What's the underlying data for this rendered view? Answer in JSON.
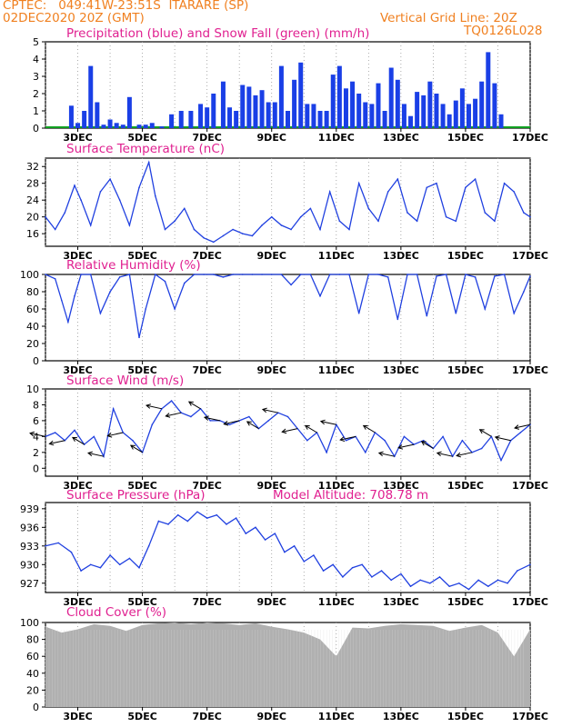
{
  "header": {
    "source": "CPTEC:",
    "location_coords": "049:41W-23:51S",
    "station": "ITARARE (SP)",
    "date": "02DEC2020 20Z (GMT)",
    "grid_note": "Vertical Grid Line: 20Z",
    "code": "TQ0126L028"
  },
  "colors": {
    "header": "#f08020",
    "titles": "#e02090",
    "precip": "#1a3fe6",
    "snow": "#10a020",
    "line": "#2040e0",
    "cloud": "#b0b0b0",
    "wind_arrow": "#000000"
  },
  "x_axis": {
    "labels": [
      "3DEC",
      "5DEC",
      "7DEC",
      "9DEC",
      "11DEC",
      "13DEC",
      "15DEC",
      "17DEC"
    ],
    "label_days": [
      1,
      3,
      5,
      7,
      9,
      11,
      13,
      15
    ],
    "range_days": [
      0,
      15
    ]
  },
  "chart_data": [
    {
      "type": "bar",
      "title": "Precipitation (blue) and Snow Fall (green) (mm/h)",
      "ylim": [
        0,
        5
      ],
      "yticks": [
        0,
        1,
        2,
        3,
        4,
        5
      ],
      "x": [
        0.8,
        1.0,
        1.2,
        1.4,
        1.6,
        1.8,
        2.0,
        2.2,
        2.4,
        2.6,
        2.9,
        3.1,
        3.3,
        3.6,
        3.9,
        4.2,
        4.5,
        4.8,
        5.0,
        5.2,
        5.5,
        5.7,
        5.9,
        6.1,
        6.3,
        6.5,
        6.7,
        6.9,
        7.1,
        7.3,
        7.5,
        7.7,
        7.9,
        8.1,
        8.3,
        8.5,
        8.7,
        8.9,
        9.1,
        9.3,
        9.5,
        9.7,
        9.9,
        10.1,
        10.3,
        10.5,
        10.7,
        10.9,
        11.1,
        11.3,
        11.5,
        11.7,
        11.9,
        12.1,
        12.3,
        12.5,
        12.7,
        12.9,
        13.1,
        13.3,
        13.5,
        13.7,
        13.9,
        14.1
      ],
      "values": [
        1.3,
        0.3,
        1.0,
        3.6,
        1.5,
        0.2,
        0.5,
        0.3,
        0.2,
        1.8,
        0.2,
        0.2,
        0.3,
        0.1,
        0.8,
        1.0,
        1.0,
        1.4,
        1.2,
        2.0,
        2.7,
        1.2,
        1.0,
        2.5,
        2.4,
        1.9,
        2.2,
        1.5,
        1.5,
        3.6,
        1.0,
        2.8,
        3.8,
        1.4,
        1.4,
        1.0,
        1.0,
        3.1,
        3.6,
        2.3,
        2.7,
        2.0,
        1.5,
        1.4,
        2.6,
        1.0,
        3.5,
        2.8,
        1.4,
        0.7,
        2.1,
        1.9,
        2.7,
        2.0,
        1.4,
        0.8,
        1.6,
        2.3,
        1.4,
        1.7,
        2.7,
        4.4,
        2.6,
        0.8
      ],
      "snow_values": "zero"
    },
    {
      "type": "line",
      "title": "Surface Temperature (nC)",
      "ylim": [
        13,
        34
      ],
      "yticks": [
        16,
        20,
        24,
        28,
        32
      ],
      "x": [
        0,
        0.3,
        0.6,
        0.9,
        1.1,
        1.4,
        1.7,
        2.0,
        2.3,
        2.6,
        2.9,
        3.2,
        3.4,
        3.7,
        4.0,
        4.3,
        4.6,
        4.9,
        5.2,
        5.5,
        5.8,
        6.1,
        6.4,
        6.7,
        7.0,
        7.3,
        7.6,
        7.9,
        8.2,
        8.5,
        8.8,
        9.1,
        9.4,
        9.7,
        10.0,
        10.3,
        10.6,
        10.9,
        11.2,
        11.5,
        11.8,
        12.1,
        12.4,
        12.7,
        13.0,
        13.3,
        13.6,
        13.9,
        14.2,
        14.5,
        14.8,
        15.0
      ],
      "values": [
        20,
        17,
        21,
        27.5,
        24,
        18,
        26,
        29,
        24,
        18,
        27,
        33,
        25,
        17,
        19,
        22,
        17,
        15,
        14,
        15.5,
        17,
        16,
        15.5,
        18,
        20,
        18,
        17,
        20,
        22,
        17,
        26,
        19,
        17,
        28,
        22,
        19,
        26,
        29,
        21,
        19,
        27,
        28,
        20,
        19,
        27,
        29,
        21,
        19,
        28,
        26,
        21,
        20
      ]
    },
    {
      "type": "line",
      "title": "Relative Humidity (%)",
      "ylim": [
        0,
        100
      ],
      "yticks": [
        0,
        20,
        40,
        60,
        80,
        100
      ],
      "x": [
        0,
        0.3,
        0.5,
        0.7,
        0.9,
        1.1,
        1.4,
        1.7,
        2.0,
        2.3,
        2.6,
        2.9,
        3.1,
        3.4,
        3.7,
        4.0,
        4.3,
        4.6,
        4.9,
        5.2,
        5.5,
        5.8,
        6.1,
        6.4,
        6.7,
        7.0,
        7.3,
        7.6,
        7.9,
        8.2,
        8.5,
        8.8,
        9.1,
        9.4,
        9.7,
        10.0,
        10.3,
        10.6,
        10.9,
        11.2,
        11.5,
        11.8,
        12.1,
        12.4,
        12.7,
        13.0,
        13.3,
        13.6,
        13.9,
        14.2,
        14.5,
        14.8,
        15.0
      ],
      "values": [
        100,
        95,
        70,
        45,
        75,
        100,
        100,
        55,
        80,
        97,
        100,
        27,
        60,
        100,
        92,
        60,
        90,
        100,
        100,
        100,
        97,
        100,
        100,
        100,
        100,
        100,
        100,
        88,
        100,
        100,
        75,
        100,
        100,
        100,
        55,
        100,
        100,
        97,
        48,
        100,
        100,
        52,
        98,
        100,
        55,
        100,
        97,
        60,
        98,
        100,
        55,
        80,
        98
      ]
    },
    {
      "type": "line",
      "title": "Surface Wind (m/s)",
      "ylim": [
        -1,
        10
      ],
      "yticks": [
        0,
        2,
        4,
        6,
        8,
        10
      ],
      "x": [
        0,
        0.3,
        0.6,
        0.9,
        1.2,
        1.5,
        1.8,
        2.1,
        2.4,
        2.7,
        3.0,
        3.3,
        3.6,
        3.9,
        4.2,
        4.5,
        4.8,
        5.1,
        5.4,
        5.7,
        6.0,
        6.3,
        6.6,
        6.9,
        7.2,
        7.5,
        7.8,
        8.1,
        8.4,
        8.7,
        9.0,
        9.3,
        9.6,
        9.9,
        10.2,
        10.5,
        10.8,
        11.1,
        11.4,
        11.7,
        12.0,
        12.3,
        12.6,
        12.9,
        13.2,
        13.5,
        13.8,
        14.1,
        14.4,
        14.7,
        15.0
      ],
      "values": [
        4.0,
        4.5,
        3.5,
        4.8,
        3.0,
        4.0,
        1.5,
        7.5,
        4.5,
        3.5,
        2.0,
        5.5,
        7.5,
        8.5,
        7.0,
        6.5,
        7.5,
        6.0,
        6.0,
        5.5,
        6.0,
        6.5,
        5.0,
        6.0,
        7.0,
        6.5,
        5.0,
        3.5,
        4.5,
        2.0,
        5.5,
        3.5,
        4.0,
        2.0,
        4.5,
        3.5,
        1.5,
        4.0,
        3.0,
        3.5,
        2.5,
        4.0,
        1.5,
        3.5,
        2.0,
        2.5,
        4.0,
        1.0,
        3.5,
        4.5,
        5.5
      ]
    },
    {
      "type": "line",
      "title": "Surface Pressure (hPa)",
      "annotation": "Model Altitude: 708.78 m",
      "ylim": [
        925.5,
        940
      ],
      "yticks": [
        927,
        930,
        933,
        936,
        939
      ],
      "x": [
        0,
        0.4,
        0.8,
        1.1,
        1.4,
        1.7,
        2.0,
        2.3,
        2.6,
        2.9,
        3.2,
        3.5,
        3.8,
        4.1,
        4.4,
        4.7,
        5.0,
        5.3,
        5.6,
        5.9,
        6.2,
        6.5,
        6.8,
        7.1,
        7.4,
        7.7,
        8.0,
        8.3,
        8.6,
        8.9,
        9.2,
        9.5,
        9.8,
        10.1,
        10.4,
        10.7,
        11.0,
        11.3,
        11.6,
        11.9,
        12.2,
        12.5,
        12.8,
        13.1,
        13.4,
        13.7,
        14.0,
        14.3,
        14.6,
        15.0
      ],
      "values": [
        933,
        933.5,
        932,
        929,
        930,
        929.5,
        931.5,
        930,
        931,
        929.5,
        933,
        937,
        936.5,
        938,
        937,
        938.5,
        937.5,
        938,
        936.5,
        937.5,
        935,
        936,
        934,
        935,
        932,
        933,
        930.5,
        931.5,
        929,
        930,
        928,
        929.5,
        930,
        928,
        929,
        927.5,
        928.5,
        926.5,
        927.5,
        927,
        928,
        926.5,
        927,
        926,
        927.5,
        926.5,
        927.5,
        927,
        929,
        930
      ]
    },
    {
      "type": "area",
      "title": "Cloud Cover (%)",
      "ylim": [
        0,
        100
      ],
      "yticks": [
        0,
        20,
        40,
        60,
        80,
        100
      ],
      "x": [
        0,
        0.5,
        1.0,
        1.5,
        2.0,
        2.5,
        3.0,
        3.5,
        4.0,
        4.5,
        5.0,
        5.5,
        6.0,
        6.5,
        7.0,
        7.5,
        8.0,
        8.5,
        9.0,
        9.5,
        10.0,
        10.5,
        11.0,
        11.5,
        12.0,
        12.5,
        13.0,
        13.5,
        14.0,
        14.5,
        15.0
      ],
      "values": [
        95,
        88,
        92,
        98,
        96,
        90,
        97,
        99,
        100,
        98,
        100,
        99,
        97,
        99,
        95,
        92,
        88,
        80,
        60,
        94,
        93,
        96,
        98,
        97,
        96,
        90,
        94,
        97,
        88,
        60,
        92
      ]
    }
  ]
}
